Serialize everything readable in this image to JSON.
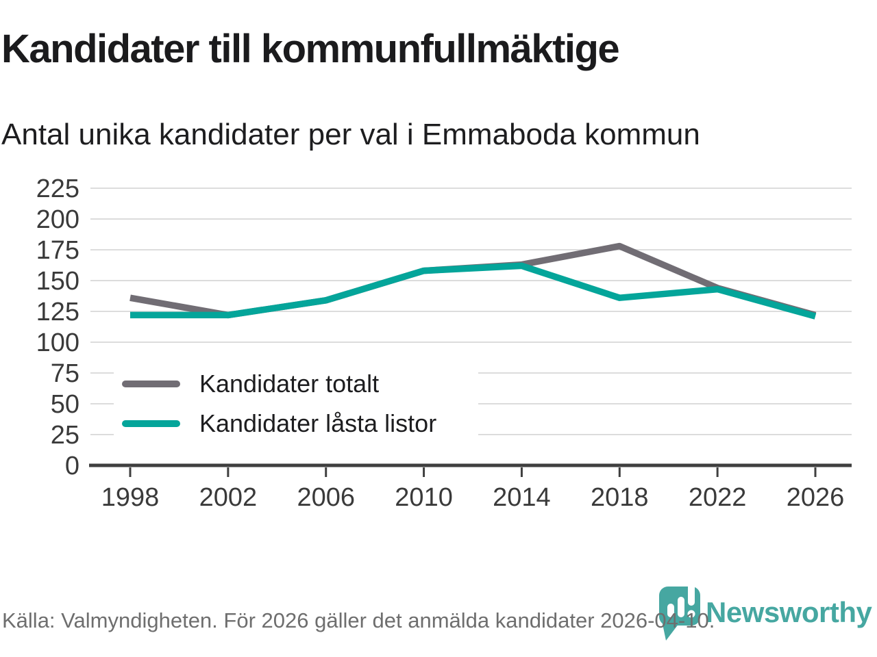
{
  "chart_data": {
    "type": "line",
    "title": "Kandidater till kommunfullmäktige",
    "subtitle": "Antal unika kandidater per val i Emmaboda kommun",
    "categories": [
      "1998",
      "2002",
      "2006",
      "2010",
      "2014",
      "2018",
      "2022",
      "2026"
    ],
    "series": [
      {
        "name": "Kandidater totalt",
        "color": "#716d74",
        "values": [
          136,
          122,
          134,
          158,
          163,
          178,
          144,
          122
        ]
      },
      {
        "name": "Kandidater låsta listor",
        "color": "#04a59a",
        "values": [
          122,
          122,
          134,
          158,
          162,
          136,
          143,
          121
        ]
      }
    ],
    "xlabel": "",
    "ylabel": "",
    "ylim": [
      0,
      225
    ],
    "y_ticks": [
      0,
      25,
      50,
      75,
      100,
      125,
      150,
      175,
      200,
      225
    ],
    "grid": true,
    "legend_position": "inside-bottom-left"
  },
  "footer": {
    "source": "Källa: Valmyndigheten. För 2026 gäller det anmälda kandidater 2026-04-10.",
    "brand": "Newsworthy"
  },
  "colors": {
    "grid": "#dcdcdc",
    "axis": "#3f3f3f",
    "axis_label": "#3a3a3a",
    "title_text": "#1b1b1d",
    "footer_text": "#6e6e6e",
    "brand_teal": "#46a7a1"
  }
}
